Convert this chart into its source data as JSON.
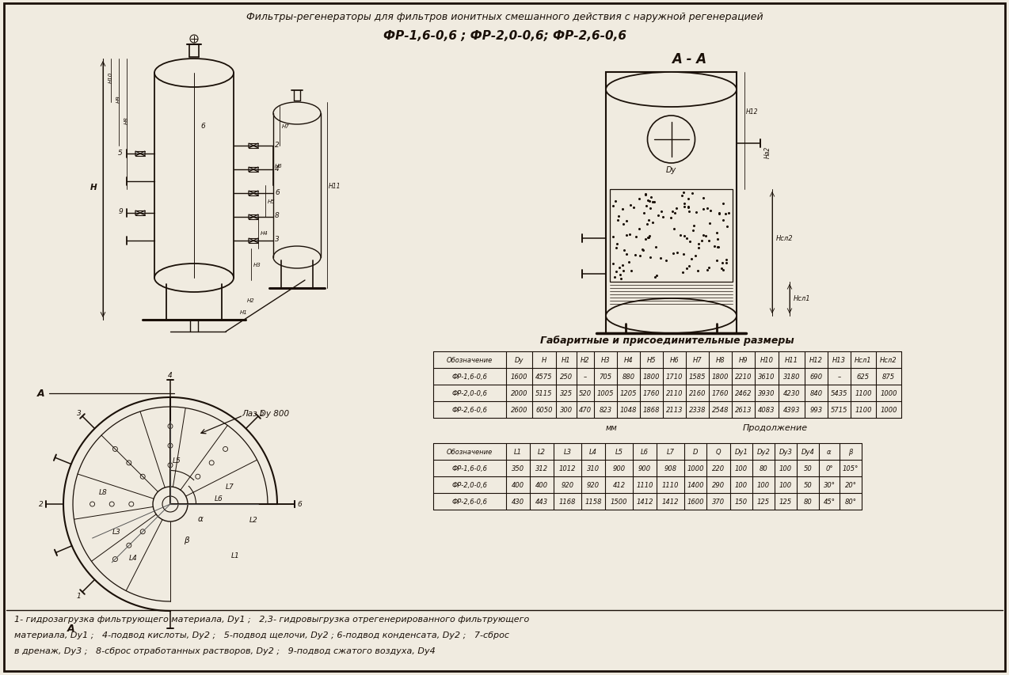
{
  "title_line1": "Фильтры-регенераторы для фильтров ионитных смешанного действия с наружной регенерацией",
  "title_line2": "ФР-1,6-0,6 ; ФР-2,0-0,6; ФР-2,6-0,6",
  "section_label": "А - А",
  "table1_title": "Габаритные и присоединительные размеры",
  "table1_header": [
    "Обозначение",
    "Dy",
    "H",
    "H1",
    "H2",
    "H3",
    "H4",
    "H5",
    "H6",
    "H7",
    "H8",
    "H9",
    "H10",
    "H11",
    "H12",
    "H13",
    "Hсл1",
    "Hсл2"
  ],
  "table1_rows": [
    [
      "ФР-1,6-0,6",
      "1600",
      "4575",
      "250",
      "–",
      "705",
      "880",
      "1800",
      "1710",
      "1585",
      "1800",
      "2210",
      "3610",
      "3180",
      "690",
      "–",
      "625",
      "875"
    ],
    [
      "ФР-2,0-0,6",
      "2000",
      "5115",
      "325",
      "520",
      "1005",
      "1205",
      "1760",
      "2110",
      "2160",
      "1760",
      "2462",
      "3930",
      "4230",
      "840",
      "5435",
      "1100",
      "1000"
    ],
    [
      "ФР-2,6-0,6",
      "2600",
      "6050",
      "300",
      "470",
      "823",
      "1048",
      "1868",
      "2113",
      "2338",
      "2548",
      "2613",
      "4083",
      "4393",
      "993",
      "5715",
      "1100",
      "1000"
    ]
  ],
  "table2_note_mm": "мм",
  "table2_note_prod": "Продолжение",
  "table2_header": [
    "Обозначение",
    "L1",
    "L2",
    "L3",
    "L4",
    "L5",
    "L6",
    "L7",
    "D",
    "Q",
    "Dy1",
    "Dy2",
    "Dy3",
    "Dy4",
    "α",
    "β"
  ],
  "table2_rows": [
    [
      "ФР-1,6-0,6",
      "350",
      "312",
      "1012",
      "310",
      "900",
      "900",
      "908",
      "1000",
      "220",
      "100",
      "80",
      "100",
      "50",
      "0°",
      "105°"
    ],
    [
      "ФР-2,0-0,6",
      "400",
      "400",
      "920",
      "920",
      "412",
      "1110",
      "1110",
      "1400",
      "290",
      "100",
      "100",
      "100",
      "50",
      "30°",
      "20°"
    ],
    [
      "ФР-2,6-0,6",
      "430",
      "443",
      "1168",
      "1158",
      "1500",
      "1412",
      "1412",
      "1600",
      "370",
      "150",
      "125",
      "125",
      "80",
      "45°",
      "80°"
    ]
  ],
  "footer_text1": "1- гидрозагрузка фильтрующего материала, Dy1 ;   2,3- гидровыгрузка отрегенерированного фильтрующего",
  "footer_text2": "материала, Dy1 ;   4-подвод кислоты, Dy2 ;   5-подвод щелочи, Dy2 ; 6-подвод конденсата, Dy2 ;   7-сброс",
  "footer_text3": "в дренаж, Dy3 ;   8-сброс отработанных растворов, Dy2 ;   9-подвод сжатого воздуха, Dy4",
  "laz_label": "Лаз Dy 800",
  "bg_color": "#f0ebe0",
  "line_color": "#1a1008",
  "table_bg": "#f0ebe0"
}
